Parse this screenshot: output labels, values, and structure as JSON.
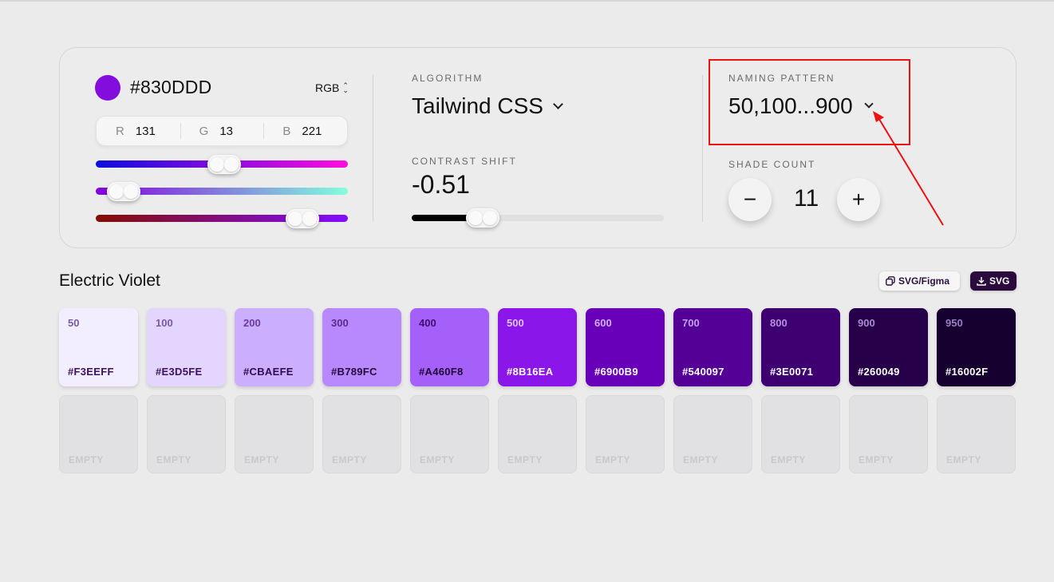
{
  "base_color": {
    "hex": "#830DDD",
    "mode": "RGB"
  },
  "rgb_inputs": [
    {
      "letter": "R",
      "value": "131"
    },
    {
      "letter": "G",
      "value": "13"
    },
    {
      "letter": "B",
      "value": "221"
    }
  ],
  "sliders": {
    "r": 0.51,
    "g": 0.05,
    "b": 0.87
  },
  "algorithm": {
    "caption": "ALGORITHM",
    "value": "Tailwind CSS"
  },
  "contrast_shift": {
    "caption": "CONTRAST SHIFT",
    "value": "-0.51"
  },
  "naming_pattern": {
    "caption": "NAMING PATTERN",
    "value": "50,100...900"
  },
  "shade_count": {
    "caption": "SHADE COUNT",
    "value": "11",
    "minus": "−",
    "plus": "+"
  },
  "palette": {
    "name": "Electric Violet",
    "export_figma_label": "SVG/Figma",
    "export_svg_label": "SVG",
    "shades": [
      {
        "step": "50",
        "hex": "#F3EEFF",
        "color": "#f3eeff",
        "text": "#7a5aa0",
        "hex_text": "#3b1160"
      },
      {
        "step": "100",
        "hex": "#E3D5FE",
        "color": "#e3d5fe",
        "text": "#7a5aa0",
        "hex_text": "#3b1160"
      },
      {
        "step": "200",
        "hex": "#CBAEFE",
        "color": "#cbaefe",
        "text": "#6a3aa0",
        "hex_text": "#2e0a50"
      },
      {
        "step": "300",
        "hex": "#B789FC",
        "color": "#b789fc",
        "text": "#5a2a8e",
        "hex_text": "#26083f"
      },
      {
        "step": "400",
        "hex": "#A460F8",
        "color": "#a460f8",
        "text": "#3d0f6e",
        "hex_text": "#1f0535"
      },
      {
        "step": "500",
        "hex": "#8B16EA",
        "color": "#8b16ea",
        "text": "#dcc6ff",
        "hex_text": "#ffffff"
      },
      {
        "step": "600",
        "hex": "#6900B9",
        "color": "#6900b9",
        "text": "#cfb0f5",
        "hex_text": "#ffffff"
      },
      {
        "step": "700",
        "hex": "#540097",
        "color": "#540097",
        "text": "#c49ef0",
        "hex_text": "#ffffff"
      },
      {
        "step": "800",
        "hex": "#3E0071",
        "color": "#3e0071",
        "text": "#b590e0",
        "hex_text": "#ffffff"
      },
      {
        "step": "900",
        "hex": "#260049",
        "color": "#260049",
        "text": "#a98ad0",
        "hex_text": "#ffffff"
      },
      {
        "step": "950",
        "hex": "#16002F",
        "color": "#16002f",
        "text": "#9a80c0",
        "hex_text": "#ffffff"
      }
    ],
    "empty_label": "EMPTY",
    "empty_count": 11
  },
  "colors": {
    "highlight": "#ee1111",
    "accent": "#830ddd"
  }
}
